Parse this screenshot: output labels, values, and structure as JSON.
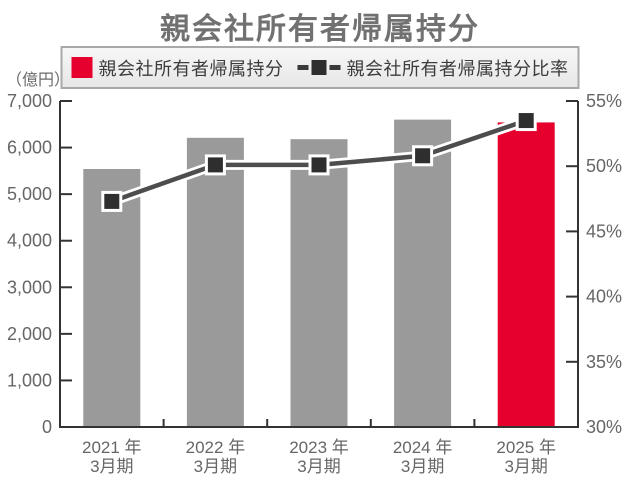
{
  "page": {
    "background": "#ffffff"
  },
  "legend": {
    "items": [
      {
        "label": "親会社所有者帰属持分",
        "swatch": "red-square"
      },
      {
        "label": "親会社所有者帰属持分比率",
        "swatch": "dash-square-dash"
      }
    ]
  },
  "chart_data": {
    "type": "bar+line-combo",
    "title": "親会社所有者帰属持分",
    "unit_label": "（億円）",
    "categories": [
      {
        "line1": "2021 年",
        "line2": "3月期"
      },
      {
        "line1": "2022 年",
        "line2": "3月期"
      },
      {
        "line1": "2023 年",
        "line2": "3月期"
      },
      {
        "line1": "2024 年",
        "line2": "3月期"
      },
      {
        "line1": "2025 年",
        "line2": "3月期"
      }
    ],
    "series": [
      {
        "name": "親会社所有者帰属持分",
        "type": "bar",
        "axis": "left",
        "values": [
          5540,
          6210,
          6180,
          6600,
          6540
        ]
      },
      {
        "name": "親会社所有者帰属持分比率",
        "type": "line",
        "axis": "right",
        "values": [
          47.3,
          50.1,
          50.1,
          50.8,
          53.5
        ]
      }
    ],
    "left_axis": {
      "min": 0,
      "max": 7000,
      "step": 1000,
      "label": "（億円）",
      "ticks": [
        "0",
        "1,000",
        "2,000",
        "3,000",
        "4,000",
        "5,000",
        "6,000",
        "7,000"
      ]
    },
    "right_axis": {
      "min": 30,
      "max": 55,
      "step": 5,
      "suffix": "%",
      "ticks": [
        "30%",
        "35%",
        "40%",
        "45%",
        "50%",
        "55%"
      ]
    },
    "colors": {
      "bar": "#9a9a9a",
      "bar_highlight": "#e6002d",
      "highlight_index": 4,
      "line": "#4d4d4d",
      "line_casing": "#ffffff",
      "marker": "#2e2e2e",
      "marker_border": "#ffffff",
      "axis": "#333333",
      "tick_label": "#666666",
      "title": "#717171"
    },
    "grid": false,
    "legend_position": "top"
  }
}
